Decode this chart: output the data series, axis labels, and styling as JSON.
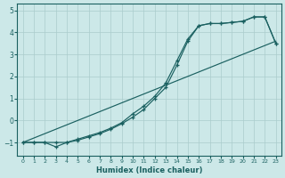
{
  "xlabel": "Humidex (Indice chaleur)",
  "background_color": "#cce8e8",
  "grid_color": "#aacccc",
  "line_color": "#1a6060",
  "xlim": [
    -0.5,
    23.5
  ],
  "ylim": [
    -1.6,
    5.3
  ],
  "yticks": [
    -1,
    0,
    1,
    2,
    3,
    4,
    5
  ],
  "xticks": [
    0,
    1,
    2,
    3,
    4,
    5,
    6,
    7,
    8,
    9,
    10,
    11,
    12,
    13,
    14,
    15,
    16,
    17,
    18,
    19,
    20,
    21,
    22,
    23
  ],
  "line1_x": [
    0,
    1,
    2,
    3,
    4,
    5,
    6,
    7,
    8,
    9,
    10,
    11,
    12,
    13,
    14,
    15,
    16,
    17,
    18,
    19,
    20,
    21,
    22,
    23
  ],
  "line1_y": [
    -1.0,
    -1.0,
    -1.0,
    -1.2,
    -1.0,
    -0.9,
    -0.75,
    -0.6,
    -0.4,
    -0.15,
    0.15,
    0.5,
    1.0,
    1.5,
    2.5,
    3.6,
    4.3,
    4.4,
    4.4,
    4.45,
    4.5,
    4.7,
    4.7,
    3.5
  ],
  "line2_x": [
    0,
    1,
    2,
    3,
    4,
    5,
    6,
    7,
    8,
    9,
    10,
    11,
    12,
    13,
    14,
    15,
    16,
    17,
    18,
    19,
    20,
    21,
    22,
    23
  ],
  "line2_y": [
    -1.0,
    -1.0,
    -1.0,
    -1.0,
    -1.0,
    -0.85,
    -0.7,
    -0.55,
    -0.35,
    -0.1,
    0.3,
    0.65,
    1.1,
    1.7,
    2.7,
    3.7,
    4.3,
    4.4,
    4.4,
    4.45,
    4.5,
    4.7,
    4.7,
    3.5
  ],
  "line3_x": [
    0,
    23
  ],
  "line3_y": [
    -1.0,
    3.6
  ]
}
